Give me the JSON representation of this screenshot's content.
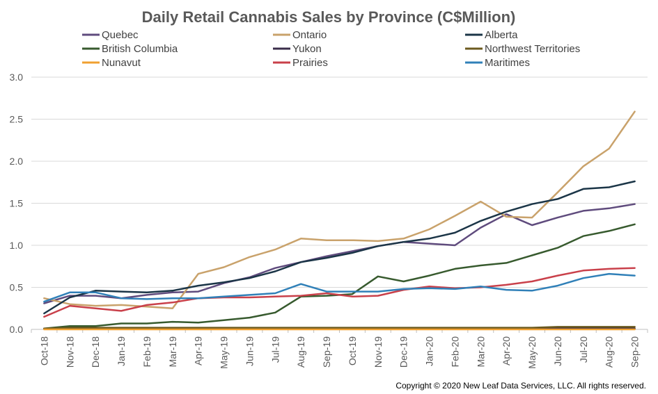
{
  "chart_data": {
    "type": "line",
    "title": "Daily Retail Cannabis Sales by Province (C$Million)",
    "xlabel": "",
    "ylabel": "",
    "ylim": [
      0,
      3.0
    ],
    "yticks": [
      "0.0",
      "0.5",
      "1.0",
      "1.5",
      "2.0",
      "2.5",
      "3.0"
    ],
    "grid": true,
    "legend_position": "top",
    "categories": [
      "Oct-18",
      "Nov-18",
      "Dec-18",
      "Jan-19",
      "Feb-19",
      "Mar-19",
      "Apr-19",
      "May-19",
      "Jun-19",
      "Jul-19",
      "Aug-19",
      "Sep-19",
      "Oct-19",
      "Nov-19",
      "Dec-19",
      "Jan-20",
      "Feb-20",
      "Mar-20",
      "Apr-20",
      "May-20",
      "Jun-20",
      "Jul-20",
      "Aug-20",
      "Sep-20"
    ],
    "series": [
      {
        "name": "Quebec",
        "color": "#5f4b7d",
        "values": [
          0.31,
          0.4,
          0.4,
          0.37,
          0.41,
          0.44,
          0.45,
          0.55,
          0.62,
          0.73,
          0.8,
          0.87,
          0.93,
          0.99,
          1.04,
          1.02,
          1.0,
          1.21,
          1.37,
          1.24,
          1.33,
          1.41,
          1.44,
          1.49
        ]
      },
      {
        "name": "Ontario",
        "color": "#c9a26b",
        "values": [
          0.37,
          0.3,
          0.28,
          0.29,
          0.27,
          0.25,
          0.66,
          0.74,
          0.86,
          0.95,
          1.08,
          1.06,
          1.06,
          1.05,
          1.08,
          1.19,
          1.35,
          1.52,
          1.34,
          1.33,
          1.63,
          1.94,
          2.15,
          2.59
        ]
      },
      {
        "name": "Alberta",
        "color": "#1b3547",
        "values": [
          0.19,
          0.38,
          0.46,
          0.45,
          0.44,
          0.46,
          0.52,
          0.56,
          0.61,
          0.69,
          0.8,
          0.85,
          0.91,
          0.99,
          1.04,
          1.08,
          1.15,
          1.29,
          1.4,
          1.49,
          1.55,
          1.67,
          1.69,
          1.76
        ]
      },
      {
        "name": "British Columbia",
        "color": "#375a2e",
        "values": [
          0.01,
          0.04,
          0.04,
          0.07,
          0.07,
          0.09,
          0.08,
          0.11,
          0.14,
          0.2,
          0.39,
          0.4,
          0.42,
          0.63,
          0.57,
          0.64,
          0.72,
          0.76,
          0.79,
          0.88,
          0.97,
          1.11,
          1.17,
          1.25
        ]
      },
      {
        "name": "Yukon",
        "color": "#3a2d4a",
        "values": [
          0.01,
          0.01,
          0.01,
          0.01,
          0.01,
          0.01,
          0.01,
          0.01,
          0.01,
          0.01,
          0.01,
          0.01,
          0.01,
          0.01,
          0.01,
          0.01,
          0.01,
          0.01,
          0.01,
          0.01,
          0.01,
          0.01,
          0.01,
          0.01
        ]
      },
      {
        "name": "Northwest Territories",
        "color": "#6b5a1e",
        "values": [
          0.01,
          0.02,
          0.02,
          0.02,
          0.02,
          0.02,
          0.02,
          0.02,
          0.02,
          0.02,
          0.02,
          0.02,
          0.02,
          0.02,
          0.02,
          0.02,
          0.02,
          0.02,
          0.02,
          0.02,
          0.03,
          0.03,
          0.03,
          0.03
        ]
      },
      {
        "name": "Nunavut",
        "color": "#f0a030",
        "values": [
          0,
          0,
          0,
          0,
          0,
          0,
          0,
          0,
          0,
          0,
          0,
          0,
          0,
          0,
          0,
          0,
          0,
          0,
          0,
          0,
          0,
          0,
          0,
          0
        ]
      },
      {
        "name": "Prairies",
        "color": "#c9404a",
        "values": [
          0.15,
          0.28,
          0.25,
          0.22,
          0.29,
          0.32,
          0.37,
          0.38,
          0.38,
          0.39,
          0.4,
          0.43,
          0.39,
          0.4,
          0.47,
          0.51,
          0.49,
          0.5,
          0.53,
          0.57,
          0.64,
          0.7,
          0.72,
          0.73
        ]
      },
      {
        "name": "Maritimes",
        "color": "#3080b8",
        "values": [
          0.33,
          0.44,
          0.44,
          0.37,
          0.36,
          0.37,
          0.37,
          0.39,
          0.41,
          0.43,
          0.54,
          0.45,
          0.45,
          0.45,
          0.48,
          0.49,
          0.48,
          0.51,
          0.47,
          0.46,
          0.52,
          0.61,
          0.66,
          0.64
        ]
      }
    ]
  },
  "footer": {
    "copyright": "Copyright © 2020 New Leaf Data Services, LLC. All rights reserved."
  }
}
